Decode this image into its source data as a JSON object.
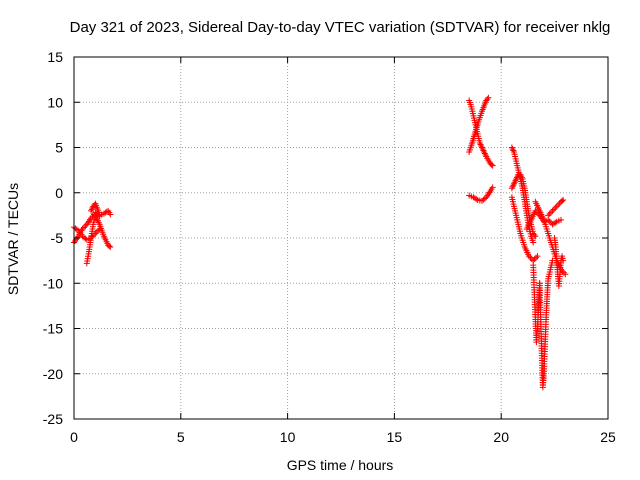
{
  "chart_data": {
    "type": "scatter",
    "title": "Day 321 of 2023, Sidereal Day-to-day VTEC variation (SDTVAR) for receiver nklg",
    "xlabel": "GPS time / hours",
    "ylabel": "SDTVAR / TECUs",
    "xlim": [
      0,
      25
    ],
    "ylim": [
      -25,
      15
    ],
    "xticks": [
      "0",
      "5",
      "10",
      "15",
      "20",
      "25"
    ],
    "yticks": [
      "15",
      "10",
      "5",
      "0",
      "-5",
      "-10",
      "-15",
      "-20",
      "-25"
    ],
    "grid": true,
    "marker": "+",
    "color": "#ff0000",
    "series": [
      {
        "name": "SDTVAR",
        "segments": [
          {
            "x": [
              0.0,
              0.2,
              0.4,
              0.6,
              0.8,
              1.0,
              1.2,
              1.4,
              1.6,
              1.7
            ],
            "y": [
              -5.5,
              -4.8,
              -4.0,
              -3.5,
              -2.8,
              -2.2,
              -2.5,
              -2.3,
              -2.0,
              -2.4
            ]
          },
          {
            "x": [
              0.0,
              0.2,
              0.4,
              0.6,
              0.8,
              1.0,
              1.2
            ],
            "y": [
              -3.8,
              -4.2,
              -4.8,
              -5.2,
              -5.0,
              -4.5,
              -4.0
            ]
          },
          {
            "x": [
              0.6,
              0.7,
              0.8,
              0.9,
              1.0,
              1.2,
              1.4,
              1.6,
              1.7
            ],
            "y": [
              -7.8,
              -6.5,
              -5.0,
              -3.5,
              -2.5,
              -3.5,
              -4.8,
              -5.8,
              -6.0
            ]
          },
          {
            "x": [
              0.8,
              0.9,
              1.0,
              1.1,
              1.2
            ],
            "y": [
              -2.0,
              -1.5,
              -1.2,
              -1.8,
              -2.6
            ]
          },
          {
            "x": [
              18.5,
              18.6,
              18.7,
              18.8,
              18.9,
              19.0,
              19.1,
              19.2,
              19.3,
              19.4,
              19.5,
              19.6
            ],
            "y": [
              10.2,
              9.5,
              8.5,
              7.5,
              6.5,
              5.5,
              5.0,
              4.5,
              4.0,
              3.6,
              3.2,
              3.0
            ]
          },
          {
            "x": [
              18.5,
              18.6,
              18.7,
              18.8,
              18.9,
              19.0,
              19.1,
              19.2,
              19.3,
              19.4
            ],
            "y": [
              4.5,
              5.2,
              6.0,
              6.8,
              7.6,
              8.3,
              9.0,
              9.6,
              10.2,
              10.5
            ]
          },
          {
            "x": [
              18.5,
              18.7,
              18.9,
              19.1,
              19.3,
              19.5,
              19.6
            ],
            "y": [
              -0.3,
              -0.5,
              -0.8,
              -0.9,
              -0.5,
              0.2,
              0.6
            ]
          },
          {
            "x": [
              20.5,
              20.6,
              20.7,
              20.8,
              20.9,
              21.0,
              21.1,
              21.2,
              21.3,
              21.4,
              21.5
            ],
            "y": [
              5.0,
              4.5,
              3.5,
              2.5,
              1.5,
              0.5,
              -1.0,
              -2.5,
              -3.8,
              -4.8,
              -5.5
            ]
          },
          {
            "x": [
              20.5,
              20.6,
              20.7,
              20.8,
              20.9,
              21.0,
              21.1,
              21.2,
              21.3,
              21.4,
              21.5,
              21.6
            ],
            "y": [
              0.5,
              1.0,
              1.5,
              2.0,
              2.0,
              1.5,
              0.5,
              -1.0,
              -2.5,
              -3.5,
              -4.5,
              -4.8
            ]
          },
          {
            "x": [
              20.5,
              20.7,
              20.9,
              21.1,
              21.3,
              21.5,
              21.7
            ],
            "y": [
              -0.5,
              -2.5,
              -4.5,
              -6.0,
              -7.0,
              -7.5,
              -7.0
            ]
          },
          {
            "x": [
              21.2,
              21.4,
              21.6,
              21.8,
              22.0,
              22.2,
              22.4,
              22.6,
              22.8
            ],
            "y": [
              -4.0,
              -3.0,
              -2.0,
              -2.5,
              -3.2,
              -3.0,
              -3.5,
              -3.2,
              -3.0
            ]
          },
          {
            "x": [
              21.6,
              21.8,
              22.0,
              22.2,
              22.4,
              22.6,
              22.8,
              23.0
            ],
            "y": [
              -1.0,
              -2.0,
              -3.0,
              -4.5,
              -6.0,
              -7.5,
              -8.5,
              -9.0
            ]
          },
          {
            "x": [
              22.2,
              22.4,
              22.6,
              22.8,
              22.9
            ],
            "y": [
              -2.5,
              -2.0,
              -1.5,
              -1.0,
              -0.8
            ]
          },
          {
            "x": [
              21.5,
              21.55,
              21.6,
              21.65,
              21.7,
              21.75,
              21.8
            ],
            "y": [
              -8.0,
              -11.0,
              -14.0,
              -16.5,
              -15.0,
              -12.5,
              -10.0
            ]
          },
          {
            "x": [
              21.8,
              21.85,
              21.9,
              21.95,
              22.0,
              22.05,
              22.1
            ],
            "y": [
              -10.0,
              -14.0,
              -18.0,
              -21.5,
              -20.0,
              -17.0,
              -14.0
            ]
          },
          {
            "x": [
              22.1,
              22.15,
              22.2,
              22.25,
              22.3,
              22.35,
              22.4
            ],
            "y": [
              -14.0,
              -11.5,
              -9.5,
              -9.0,
              -8.5,
              -8.0,
              -7.5
            ]
          },
          {
            "x": [
              22.5,
              22.55,
              22.6,
              22.65,
              22.7,
              22.75,
              22.8,
              22.85,
              22.9
            ],
            "y": [
              -5.0,
              -6.0,
              -7.5,
              -9.0,
              -10.3,
              -9.0,
              -7.5,
              -7.0,
              -7.5
            ]
          }
        ]
      }
    ]
  }
}
